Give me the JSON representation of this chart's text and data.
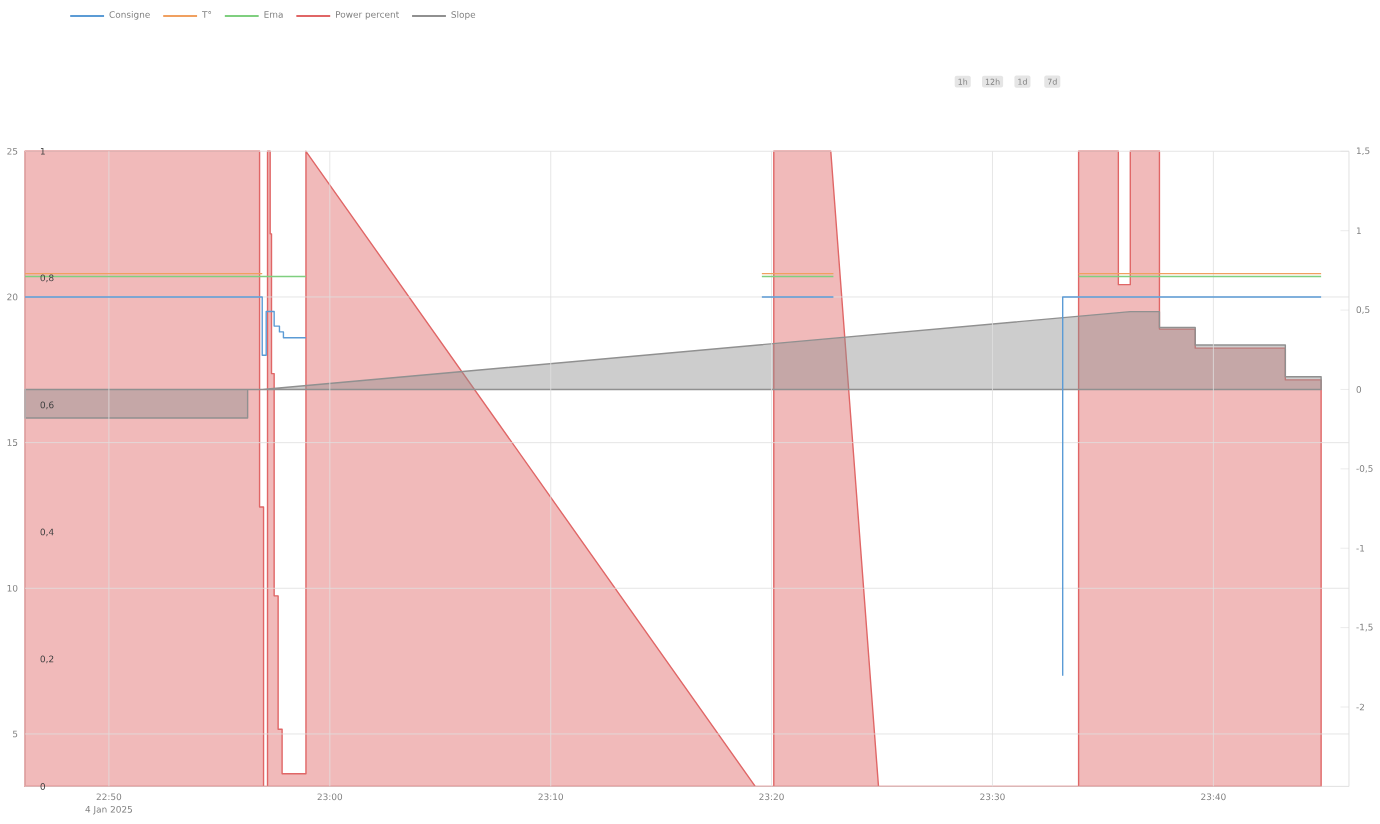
{
  "chart_data": {
    "type": "line",
    "xlim": [
      22.77,
      23.769
    ],
    "xticks": [
      {
        "value": 22.8333,
        "label": "22:50"
      },
      {
        "value": 23.0,
        "label": "23:00"
      },
      {
        "value": 23.1667,
        "label": "23:10"
      },
      {
        "value": 23.3333,
        "label": "23:20"
      },
      {
        "value": 23.5,
        "label": "23:30"
      },
      {
        "value": 23.6667,
        "label": "23:40"
      }
    ],
    "ylim": [
      3.2,
      25
    ],
    "yticks": [
      5,
      10,
      15,
      20,
      25
    ],
    "y2lim": [
      0,
      1
    ],
    "y2ticks": [
      0,
      {
        "value": 0.2,
        "label": "0,2"
      },
      {
        "value": 0.4,
        "label": "0,4"
      },
      {
        "value": 0.6,
        "label": "0,6"
      },
      {
        "value": 0.8,
        "label": "0,8"
      },
      1
    ],
    "y3lim": [
      -2.5,
      1.5
    ],
    "y3ticks": [
      {
        "value": -2,
        "label": "-2"
      },
      {
        "value": -1.5,
        "label": "-1,5"
      },
      {
        "value": -1,
        "label": "-1"
      },
      {
        "value": -0.5,
        "label": "-0,5"
      },
      0,
      {
        "value": 0.5,
        "label": "0,5"
      },
      1,
      {
        "value": 1.5,
        "label": "1,5"
      }
    ],
    "grid": true,
    "legend": "top left",
    "annotations": [
      "4 Jan 2025",
      "1h",
      "12h",
      "1d",
      "7d"
    ],
    "series": [
      {
        "name": "Power percent",
        "type": "area",
        "axis": "y2",
        "color": "#e06666",
        "x": [
          22.77,
          22.947,
          22.947,
          22.95,
          22.95,
          22.953,
          22.953,
          22.955,
          22.955,
          22.956,
          22.956,
          22.958,
          22.958,
          22.961,
          22.961,
          22.964,
          22.964,
          22.982,
          22.982,
          23.321,
          23.335,
          23.335,
          23.378,
          23.414,
          23.565,
          23.565,
          23.595,
          23.595,
          23.604,
          23.604,
          23.626,
          23.626,
          23.653,
          23.653,
          23.721,
          23.721,
          23.748
        ],
        "values": [
          1,
          1,
          0.44,
          0.44,
          0,
          0,
          1,
          1,
          0.87,
          0.87,
          0.65,
          0.65,
          0.3,
          0.3,
          0.09,
          0.09,
          0.02,
          0.02,
          1,
          0,
          0,
          1,
          1,
          0,
          0,
          1,
          1,
          0.79,
          0.79,
          1,
          1,
          0.72,
          0.72,
          0.69,
          0.69,
          0.64,
          0.64
        ]
      },
      {
        "name": "Slope",
        "type": "area",
        "axis": "y3",
        "color": "#909090",
        "x": [
          22.77,
          22.938,
          22.938,
          22.949,
          23.604,
          23.626,
          23.626,
          23.653,
          23.653,
          23.721,
          23.721,
          23.748
        ],
        "values": [
          -0.18,
          -0.18,
          0,
          0,
          0.49,
          0.49,
          0.39,
          0.39,
          0.28,
          0.28,
          0.08,
          0.08
        ]
      },
      {
        "name": "Ema",
        "color": "#7fcf7f",
        "x": [
          22.77,
          22.982,
          null,
          23.326,
          23.38,
          null,
          23.565,
          23.748
        ],
        "values": [
          20.7,
          20.7,
          null,
          20.7,
          20.7,
          null,
          20.7,
          20.7
        ]
      },
      {
        "name": "T°",
        "color": "#f0a060",
        "x": [
          22.77,
          22.949,
          null,
          23.326,
          23.38,
          null,
          23.565,
          23.748
        ],
        "values": [
          20.8,
          20.8,
          null,
          20.8,
          20.8,
          null,
          20.8,
          20.8
        ]
      },
      {
        "name": "Consigne",
        "color": "#5b9bd5",
        "x": [
          22.77,
          22.949,
          22.949,
          22.952,
          22.952,
          22.958,
          22.958,
          22.962,
          22.962,
          22.965,
          22.965,
          22.982,
          null,
          23.326,
          23.38,
          null,
          23.553,
          23.553,
          23.748
        ],
        "values": [
          20,
          20,
          18,
          18,
          19.5,
          19.5,
          19,
          19,
          18.8,
          18.8,
          18.6,
          18.6,
          null,
          20,
          20,
          null,
          7,
          20,
          20
        ]
      }
    ]
  }
}
